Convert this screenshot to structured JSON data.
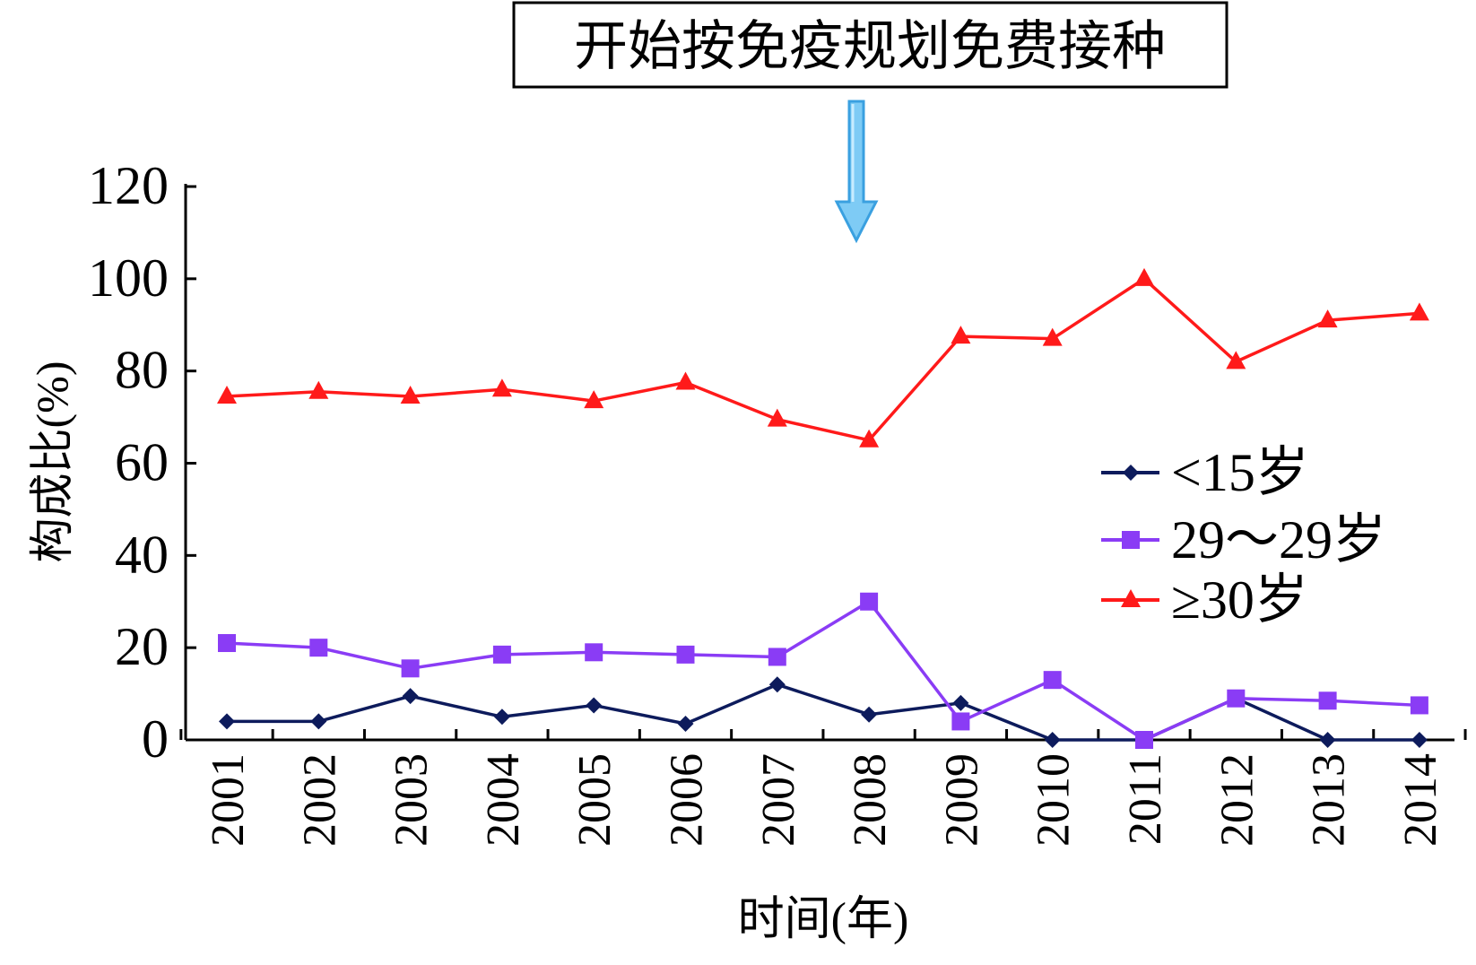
{
  "chart_data": {
    "type": "line",
    "title": "",
    "annotation": "开始按免疫规划免费接种",
    "annotation_points_to": "2008",
    "xlabel": "时间(年)",
    "ylabel": "构成比(%)",
    "ylim": [
      0,
      120
    ],
    "yticks": [
      0,
      20,
      40,
      60,
      80,
      100,
      120
    ],
    "categories": [
      "2001",
      "2002",
      "2003",
      "2004",
      "2005",
      "2006",
      "2007",
      "2008",
      "2009",
      "2010",
      "2011",
      "2012",
      "2013",
      "2014"
    ],
    "grid": false,
    "legend_position": "right-center",
    "series": [
      {
        "name": "<15岁",
        "marker": "diamond",
        "color": "#0d1b5c",
        "values": [
          4,
          4,
          9.5,
          5,
          7.5,
          3.5,
          12,
          5.5,
          8,
          0,
          0,
          9,
          0,
          0
        ]
      },
      {
        "name": "29～29岁",
        "marker": "square",
        "color": "#8a3cf5",
        "values": [
          21,
          20,
          15.5,
          18.5,
          19,
          18.5,
          18,
          30,
          4,
          13,
          0,
          9,
          8.5,
          7.5
        ]
      },
      {
        "name": "≥30岁",
        "marker": "triangle",
        "color": "#ff1a1a",
        "values": [
          74.5,
          75.5,
          74.5,
          76,
          73.5,
          77.5,
          69.5,
          65,
          87.5,
          87,
          100,
          82,
          91,
          92.5
        ]
      }
    ]
  }
}
